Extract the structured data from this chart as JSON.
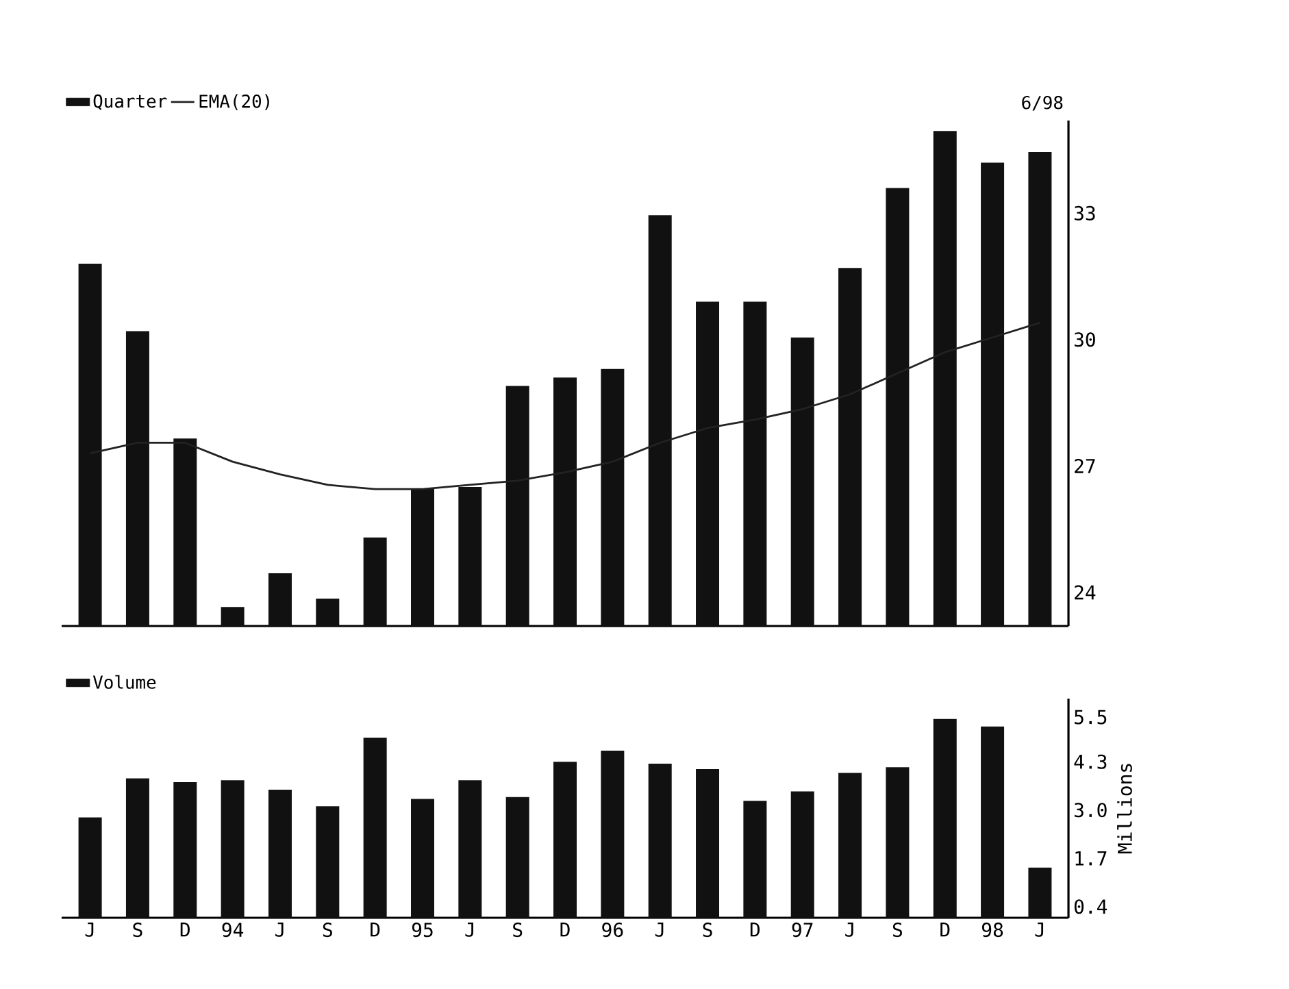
{
  "chart_data": [
    {
      "type": "bar",
      "categories": [
        null,
        null,
        null,
        null,
        null,
        null,
        null,
        null,
        null,
        null,
        null,
        null,
        null,
        null,
        null,
        null,
        null,
        null,
        null,
        null,
        null
      ],
      "series": [
        {
          "name": "Quarter",
          "color": "#111111",
          "values": [
            31.8,
            30.2,
            27.65,
            23.65,
            24.45,
            23.85,
            25.3,
            26.45,
            26.5,
            28.9,
            29.1,
            29.3,
            32.95,
            30.9,
            30.9,
            30.05,
            31.7,
            33.6,
            34.95,
            34.2,
            34.45
          ]
        },
        {
          "name": "EMA(20)",
          "type": "line",
          "color": "#222222",
          "values": [
            27.3,
            27.55,
            27.55,
            27.1,
            26.8,
            26.55,
            26.45,
            26.45,
            26.55,
            26.65,
            26.85,
            27.1,
            27.55,
            27.9,
            28.1,
            28.35,
            28.7,
            29.2,
            29.7,
            30.05,
            30.4
          ]
        }
      ],
      "ylim": [
        23.2,
        35.2
      ],
      "yticks": [
        24,
        27,
        30,
        33
      ],
      "tick_labels": "y",
      "legend": "top left",
      "annotations": [
        "6/98"
      ]
    },
    {
      "type": "bar",
      "categories": [
        "J",
        "S",
        "D",
        "94",
        "J",
        "S",
        "D",
        "95",
        "J",
        "S",
        "D",
        "96",
        "J",
        "S",
        "D",
        "97",
        "J",
        "S",
        "D",
        "98",
        "J"
      ],
      "series": [
        {
          "name": "Volume",
          "color": "#111111",
          "values": [
            2.8,
            3.85,
            3.75,
            3.8,
            3.55,
            3.1,
            4.95,
            3.3,
            3.8,
            3.35,
            4.3,
            4.6,
            4.25,
            4.1,
            3.25,
            3.5,
            4.0,
            4.15,
            5.45,
            5.25,
            1.45
          ]
        }
      ],
      "ylim": [
        0.1,
        6.0
      ],
      "yticks": [
        {
          "value": 0.4,
          "label": "0.4"
        },
        {
          "value": 1.7,
          "label": "1.7"
        },
        {
          "value": 3.0,
          "label": "3.0"
        },
        {
          "value": 4.3,
          "label": "4.3"
        },
        {
          "value": 5.5,
          "label": "5.5"
        }
      ],
      "ylabel": "Millions",
      "legend": "top left"
    }
  ]
}
